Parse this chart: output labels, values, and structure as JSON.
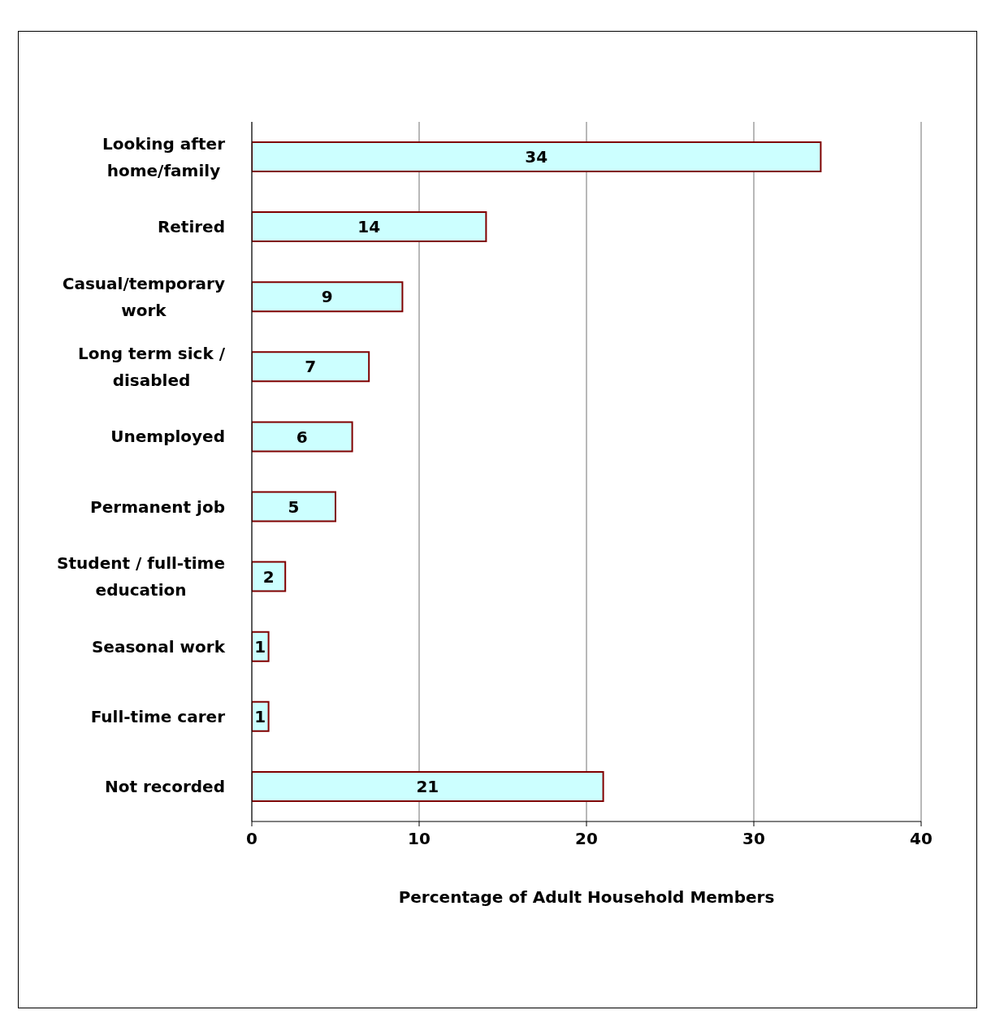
{
  "chart_data": {
    "type": "bar",
    "orientation": "horizontal",
    "categories": [
      "Looking after home/family",
      "Retired",
      "Casual/temporary work",
      "Long term sick / disabled",
      "Unemployed",
      "Permanent job",
      "Student / full-time education",
      "Seasonal work",
      "Full-time carer",
      "Not recorded"
    ],
    "values": [
      34,
      14,
      9,
      7,
      6,
      5,
      2,
      1,
      1,
      21
    ],
    "color": "#ccffff",
    "xlabel": "Percentage of Adult Household Members",
    "xlim": [
      0,
      40
    ],
    "xticks": [
      0,
      10,
      20,
      30,
      40
    ],
    "grid": "x",
    "data_labels": true
  }
}
